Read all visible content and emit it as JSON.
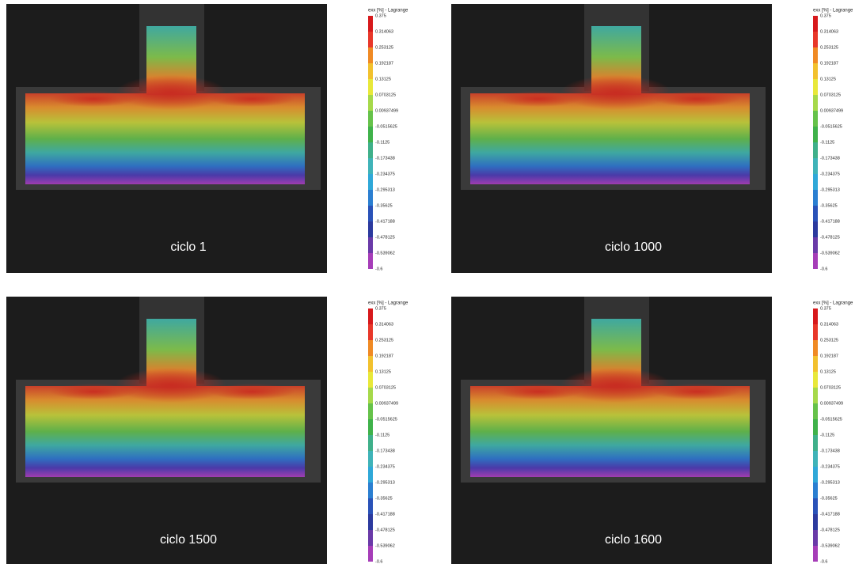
{
  "colorbar_colors": [
    "#d7191c",
    "#e8382a",
    "#f08a24",
    "#f2c12e",
    "#e8e83a",
    "#a6d94a",
    "#66c24a",
    "#3fb24a",
    "#3fb08a",
    "#3fb3b8",
    "#2fa8d8",
    "#2b7fd1",
    "#2a52b8",
    "#2c3a9e",
    "#6a3aa8",
    "#a63db8"
  ],
  "panels": [
    {
      "caption": "ciclo 1",
      "colorbar": {
        "title": "exx [%] - Lagrange",
        "labels": [
          "0.375",
          "0.314063",
          "0.253125",
          "0.192187",
          "0.13125",
          "0.0703125",
          "0.00937499",
          "-0.0515625",
          "-0.1125",
          "-0.173438",
          "-0.234375",
          "-0.295313",
          "-0.35625",
          "-0.417188",
          "-0.478125",
          "-0.539062",
          "-0.6"
        ]
      }
    },
    {
      "caption": "ciclo 1000",
      "colorbar": {
        "title": "exx [%] - Lagrange",
        "labels": [
          "0.375",
          "0.314063",
          "0.253125",
          "0.192187",
          "0.13125",
          "0.0703125",
          "0.00937499",
          "-0.0515625",
          "-0.1125",
          "-0.173438",
          "-0.234375",
          "-0.295313",
          "-0.35625",
          "-0.417188",
          "-0.478125",
          "-0.539062",
          "-0.6"
        ]
      }
    },
    {
      "caption": "ciclo 1500",
      "colorbar": {
        "title": "exx [%] - Lagrange",
        "labels": [
          "0.375",
          "0.314063",
          "0.253125",
          "0.192187",
          "0.13125",
          "0.0703125",
          "0.00937499",
          "-0.0515625",
          "-0.1125",
          "-0.173438",
          "-0.234375",
          "-0.295313",
          "-0.35625",
          "-0.417188",
          "-0.478125",
          "-0.539062",
          "-0.6"
        ]
      }
    },
    {
      "caption": "ciclo 1600",
      "colorbar": {
        "title": "exx [%] - Lagrange",
        "labels": [
          "0.375",
          "0.314063",
          "0.253125",
          "0.192187",
          "0.13125",
          "0.0703125",
          "0.00937499",
          "-0.0515625",
          "-0.1125",
          "-0.173438",
          "-0.234375",
          "-0.295313",
          "-0.35625",
          "-0.417188",
          "-0.478125",
          "-0.539062",
          "-0.6"
        ]
      }
    }
  ]
}
